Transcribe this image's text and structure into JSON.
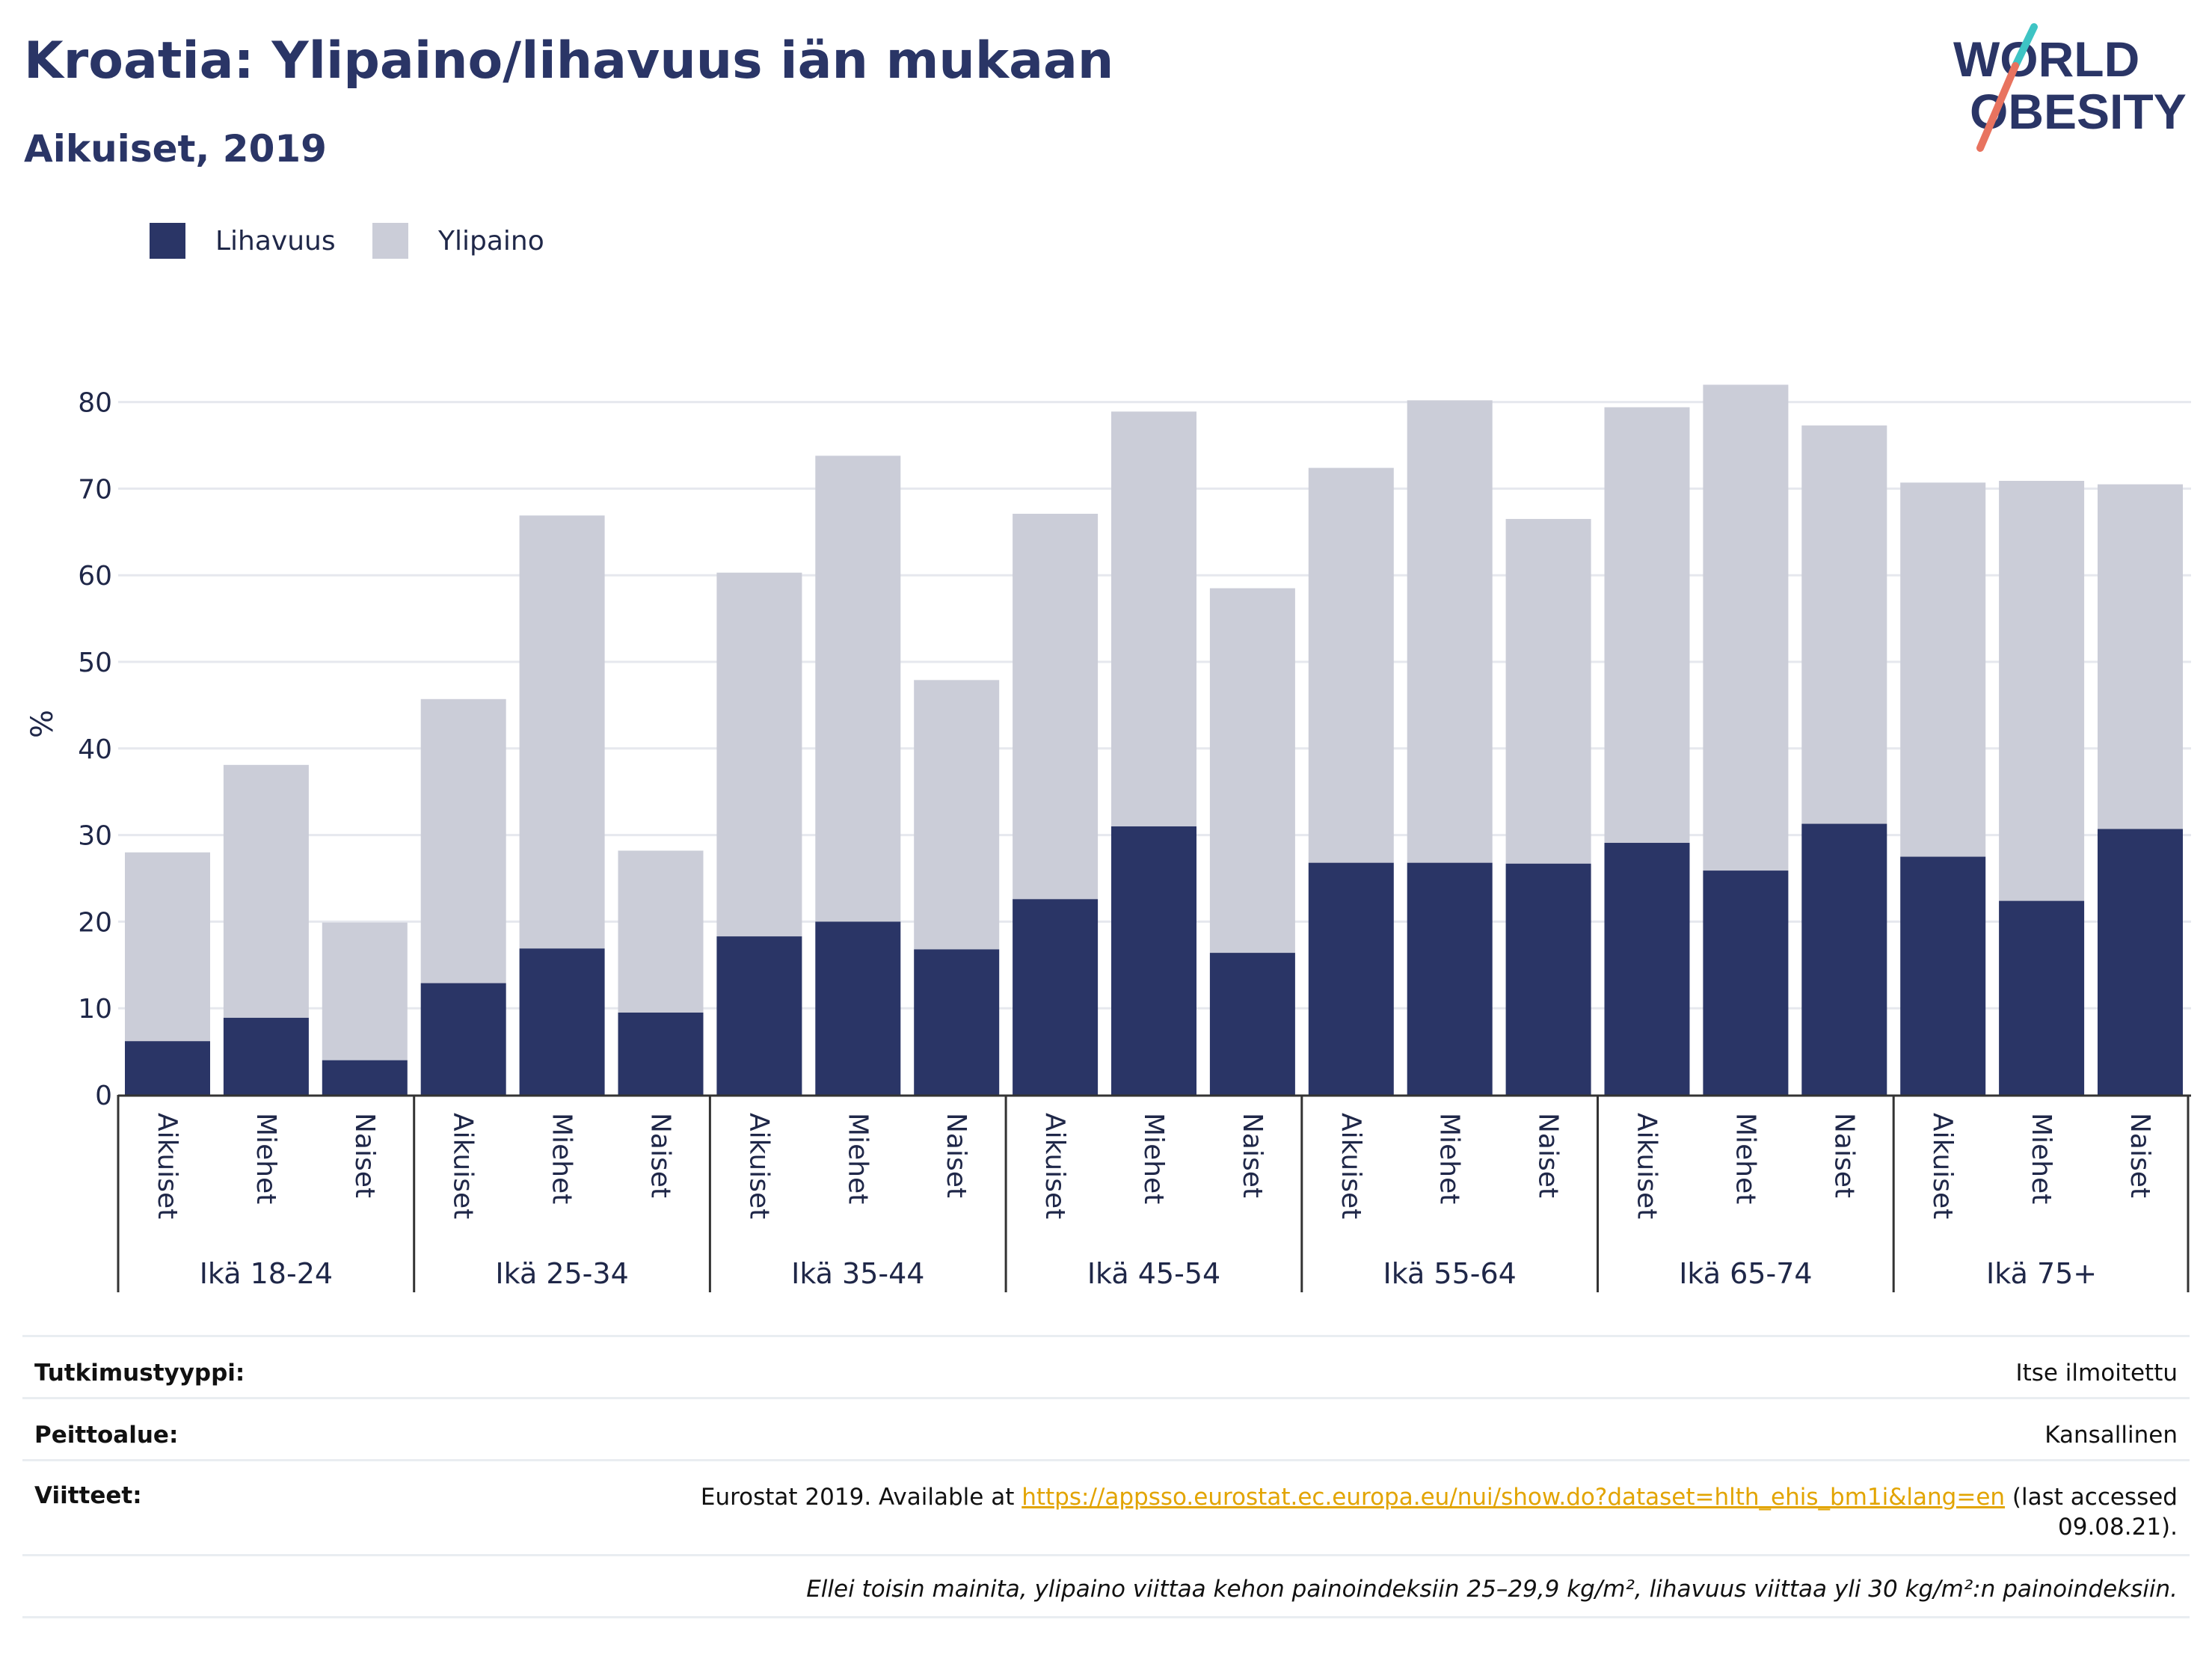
{
  "title": "Kroatia: Ylipaino/lihavuus iän mukaan",
  "subtitle": "Aikuiset, 2019",
  "logo": {
    "line1": "WORLD",
    "line2": "OBESITY",
    "colors": {
      "navy": "#2a3566",
      "teal": "#3ec4c4",
      "coral": "#e8735f"
    }
  },
  "legend": [
    {
      "label": "Lihavuus",
      "color": "#2a3566"
    },
    {
      "label": "Ylipaino",
      "color": "#cbcdd8"
    }
  ],
  "chart_data": {
    "type": "bar",
    "stacked": true,
    "ylabel": "%",
    "ylim": [
      0,
      85
    ],
    "yticks": [
      0,
      10,
      20,
      30,
      40,
      50,
      60,
      70,
      80
    ],
    "grid": true,
    "legend_position": "top-left",
    "groups": [
      "Ikä 18-24",
      "Ikä 25-34",
      "Ikä 35-44",
      "Ikä 45-54",
      "Ikä 55-64",
      "Ikä 65-74",
      "Ikä 75+"
    ],
    "subcategories": [
      "Aikuiset",
      "Miehet",
      "Naiset"
    ],
    "series": [
      {
        "name": "Lihavuus",
        "color": "#2a3566",
        "values": [
          6.2,
          8.9,
          4.0,
          12.9,
          16.9,
          9.5,
          18.3,
          20.0,
          16.8,
          22.6,
          31.0,
          16.4,
          26.8,
          26.8,
          26.7,
          29.1,
          25.9,
          31.3,
          27.5,
          22.4,
          30.7
        ]
      },
      {
        "name": "Ylipaino",
        "color": "#cbcdd8",
        "values": [
          21.8,
          29.2,
          15.9,
          32.8,
          50.0,
          18.7,
          42.0,
          53.8,
          31.1,
          44.5,
          47.9,
          42.1,
          45.6,
          53.4,
          39.8,
          50.3,
          56.1,
          46.0,
          43.2,
          48.5,
          39.8
        ]
      }
    ]
  },
  "meta": {
    "rows": [
      {
        "label": "Tutkimustyyppi:",
        "value": "Itse ilmoitettu"
      },
      {
        "label": "Peittoalue:",
        "value": "Kansallinen"
      }
    ],
    "ref_label": "Viitteet:",
    "ref_text_before": "Eurostat 2019. Available at ",
    "ref_link": "https://appsso.eurostat.ec.europa.eu/nui/show.do?dataset=hlth_ehis_bm1i&lang=en",
    "ref_text_after_1": " (last accessed",
    "ref_text_after_2": "09.08.21).",
    "note": "Ellei toisin mainita, ylipaino viittaa kehon painoindeksiin 25–29,9 kg/m², lihavuus viittaa yli 30 kg/m²:n painoindeksiin."
  }
}
